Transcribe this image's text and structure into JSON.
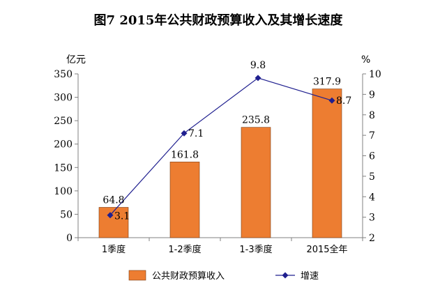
{
  "chart_data": {
    "type": "bar",
    "title": "图7 2015年公共财政预算收入及其增长速度",
    "categories": [
      "1季度",
      "1-2季度",
      "1-3季度",
      "2015全年"
    ],
    "y_left": {
      "unit": "亿元",
      "ylim": [
        0,
        350
      ],
      "ticks": [
        "0",
        "50",
        "100",
        "150",
        "200",
        "250",
        "300",
        "350"
      ]
    },
    "y_right": {
      "unit": "%",
      "ylim": [
        2,
        10
      ],
      "ticks": [
        "2",
        "3",
        "4",
        "5",
        "6",
        "7",
        "8",
        "9",
        "10"
      ]
    },
    "series": [
      {
        "name": "公共财政预算收入",
        "type": "bar",
        "axis": "left",
        "color": "#ED7D31",
        "values": [
          64.8,
          161.8,
          235.8,
          317.9
        ],
        "labels": [
          "64.8",
          "161.8",
          "235.8",
          "317.9"
        ]
      },
      {
        "name": "增速",
        "type": "line",
        "axis": "right",
        "color": "#1F1F8F",
        "values": [
          3.1,
          7.1,
          9.8,
          8.7
        ],
        "labels": [
          "3.1",
          "7.1",
          "9.8",
          "8.7"
        ]
      }
    ],
    "grid": false,
    "legend": "bottom"
  }
}
